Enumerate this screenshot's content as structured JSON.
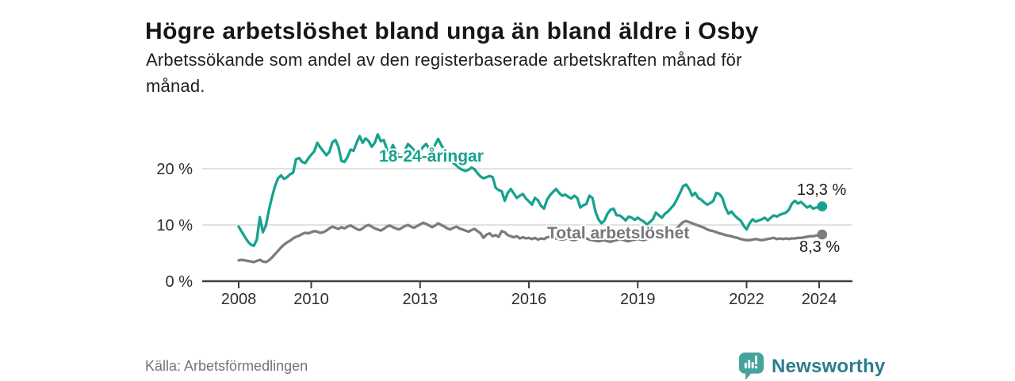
{
  "header": {
    "title": "Högre arbetslöshet bland unga än bland äldre i Osby",
    "subtitle_lines": [
      "Arbetssökande som andel av den registerbaserade arbetskraften månad för",
      "månad."
    ]
  },
  "footer": {
    "source": "Källa: Arbetsförmedlingen",
    "brand": "Newsworthy",
    "brand_icon": "bar-chart-speech-bubble"
  },
  "colors": {
    "youth": "#17a28f",
    "total": "#7b7b80",
    "grid": "#d9d9d9",
    "axis": "#404040",
    "tick_text": "#2e2e2e",
    "brand_icon": "#44a39b",
    "brand_text": "#2b7c8e"
  },
  "chart_data": {
    "type": "line",
    "title": "Högre arbetslöshet bland unga än bland äldre i Osby",
    "subtitle": "Arbetssökande som andel av den registerbaserade arbetskraften månad för månad.",
    "unit": "%",
    "x_start": "2008-01",
    "x_end": "2024-02",
    "points_per_year": 12,
    "ylim": [
      0,
      27
    ],
    "grid": "horizontal",
    "y_ticks": [
      {
        "value": 0,
        "label": "0 %"
      },
      {
        "value": 10,
        "label": "10 %"
      },
      {
        "value": 20,
        "label": "20 %"
      }
    ],
    "x_ticks": [
      {
        "year": 2008,
        "label": "2008"
      },
      {
        "year": 2010,
        "label": "2010"
      },
      {
        "year": 2013,
        "label": "2013"
      },
      {
        "year": 2016,
        "label": "2016"
      },
      {
        "year": 2019,
        "label": "2019"
      },
      {
        "year": 2022,
        "label": "2022"
      },
      {
        "year": 2024,
        "label": "2024"
      }
    ],
    "series": [
      {
        "name": "18-24-åringar",
        "color_key": "youth",
        "end_value": 13.3,
        "end_label": "13,3 %",
        "values": [
          9.7,
          8.8,
          7.9,
          7.1,
          6.5,
          6.3,
          7.4,
          11.4,
          8.7,
          9.9,
          12.6,
          14.9,
          16.9,
          18.3,
          18.8,
          18.2,
          18.5,
          19.0,
          19.3,
          21.7,
          21.9,
          21.2,
          21.0,
          21.8,
          22.5,
          23.1,
          24.6,
          23.8,
          23.1,
          22.4,
          23.0,
          24.7,
          25.1,
          23.9,
          21.4,
          21.2,
          22.1,
          23.4,
          23.2,
          24.6,
          25.8,
          24.6,
          25.4,
          24.9,
          23.9,
          24.6,
          26.1,
          24.9,
          25.1,
          23.5,
          22.8,
          24.2,
          23.2,
          22.3,
          21.8,
          23.3,
          24.4,
          23.9,
          23.3,
          22.7,
          23.1,
          23.9,
          24.4,
          23.6,
          22.9,
          24.3,
          25.3,
          24.2,
          23.4,
          22.6,
          21.8,
          21.0,
          20.6,
          20.1,
          19.8,
          19.6,
          19.8,
          20.2,
          19.9,
          19.2,
          18.6,
          18.3,
          18.5,
          18.7,
          18.5,
          16.6,
          16.2,
          16.0,
          14.3,
          15.7,
          16.4,
          15.6,
          14.8,
          15.2,
          15.5,
          14.7,
          14.2,
          13.6,
          14.8,
          14.4,
          13.4,
          12.9,
          14.5,
          15.3,
          15.9,
          16.4,
          15.7,
          15.2,
          15.4,
          15.0,
          14.7,
          15.2,
          14.8,
          13.1,
          13.5,
          13.7,
          15.2,
          14.8,
          12.4,
          11.0,
          10.3,
          10.8,
          12.0,
          12.7,
          12.9,
          11.7,
          11.7,
          11.3,
          10.8,
          11.5,
          11.3,
          10.9,
          11.3,
          10.9,
          10.6,
          10.1,
          10.5,
          11.0,
          12.2,
          11.7,
          11.3,
          12.0,
          12.4,
          13.0,
          13.6,
          14.6,
          15.7,
          16.9,
          17.2,
          16.4,
          15.2,
          15.7,
          14.8,
          14.5,
          14.0,
          13.6,
          13.9,
          14.3,
          15.7,
          15.5,
          14.8,
          13.1,
          12.0,
          12.4,
          11.7,
          11.2,
          10.8,
          9.9,
          9.2,
          10.3,
          11.0,
          10.6,
          10.8,
          11.0,
          11.3,
          10.8,
          11.3,
          11.7,
          11.5,
          11.8,
          12.0,
          12.2,
          12.7,
          13.8,
          14.3,
          13.8,
          14.1,
          13.6,
          13.1,
          13.4,
          12.9,
          13.1,
          13.2,
          13.3
        ]
      },
      {
        "name": "Total arbetslöshet",
        "color_key": "total",
        "end_value": 8.3,
        "end_label": "8,3 %",
        "values": [
          3.7,
          3.8,
          3.7,
          3.6,
          3.5,
          3.4,
          3.6,
          3.8,
          3.5,
          3.4,
          3.7,
          4.2,
          4.8,
          5.4,
          6.0,
          6.5,
          6.9,
          7.2,
          7.6,
          7.9,
          8.1,
          8.4,
          8.6,
          8.5,
          8.7,
          8.9,
          8.8,
          8.6,
          8.7,
          9.0,
          9.4,
          9.7,
          9.5,
          9.3,
          9.6,
          9.4,
          9.7,
          9.9,
          9.6,
          9.3,
          9.1,
          9.4,
          9.8,
          10.0,
          9.7,
          9.4,
          9.2,
          9.0,
          9.3,
          9.7,
          9.9,
          9.6,
          9.4,
          9.2,
          9.5,
          9.8,
          10.0,
          9.7,
          9.5,
          9.8,
          10.1,
          10.4,
          10.2,
          9.9,
          9.6,
          9.9,
          10.3,
          10.0,
          9.7,
          9.4,
          9.2,
          9.5,
          9.7,
          9.4,
          9.2,
          9.0,
          8.8,
          9.1,
          9.3,
          8.9,
          8.5,
          7.7,
          8.3,
          8.5,
          8.0,
          8.2,
          7.9,
          8.9,
          8.7,
          8.2,
          8.0,
          7.8,
          8.0,
          7.6,
          7.8,
          7.6,
          7.7,
          7.5,
          7.7,
          7.4,
          7.6,
          7.5,
          7.8,
          7.9,
          7.7,
          7.6,
          7.5,
          7.4,
          7.5,
          7.6,
          7.4,
          7.3,
          7.5,
          7.6,
          7.8,
          7.6,
          7.4,
          7.3,
          7.2,
          7.1,
          7.2,
          7.3,
          7.1,
          7.0,
          7.2,
          7.3,
          7.5,
          7.4,
          7.2,
          7.1,
          7.3,
          7.4,
          7.5,
          7.4,
          7.3,
          7.5,
          7.6,
          7.8,
          8.0,
          7.9,
          7.8,
          8.0,
          8.2,
          8.5,
          8.8,
          9.4,
          10.0,
          10.5,
          10.7,
          10.5,
          10.3,
          10.1,
          9.9,
          9.7,
          9.5,
          9.2,
          9.0,
          8.9,
          8.7,
          8.5,
          8.4,
          8.2,
          8.1,
          8.0,
          7.8,
          7.7,
          7.5,
          7.4,
          7.3,
          7.3,
          7.4,
          7.5,
          7.4,
          7.3,
          7.4,
          7.5,
          7.6,
          7.7,
          7.5,
          7.6,
          7.5,
          7.6,
          7.5,
          7.6,
          7.6,
          7.7,
          7.7,
          7.8,
          7.9,
          8.0,
          8.0,
          8.1,
          8.2,
          8.3
        ]
      }
    ],
    "legend_position": "inline-labels"
  }
}
